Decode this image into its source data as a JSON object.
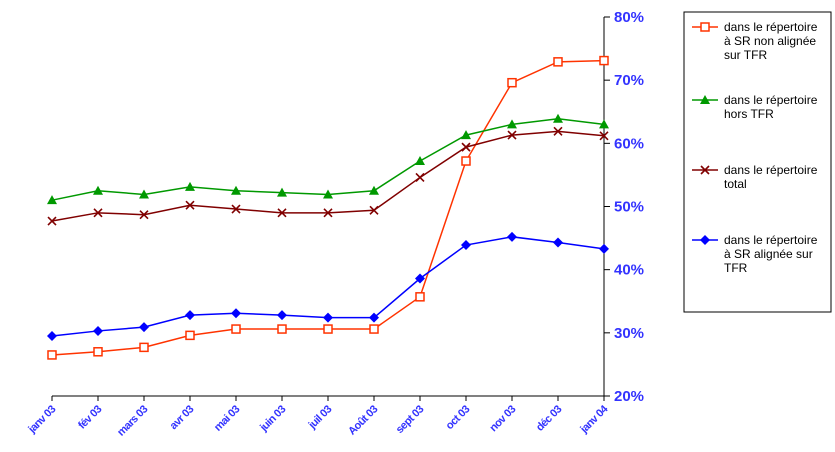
{
  "chart_data": {
    "type": "line",
    "title": "",
    "xlabel": "",
    "ylabel": "",
    "categories": [
      "janv 03",
      "fév 03",
      "mars 03",
      "avr 03",
      "mai 03",
      "juin 03",
      "juil 03",
      "Août 03",
      "sept 03",
      "oct 03",
      "nov 03",
      "déc 03",
      "janv 04"
    ],
    "y_ticks": [
      "20%",
      "30%",
      "40%",
      "50%",
      "60%",
      "70%",
      "80%"
    ],
    "ylim": [
      20,
      80
    ],
    "y_unit": "%",
    "y_axis_side": "right",
    "grid": false,
    "legend_position": "right",
    "axis_label_color": "#3333ff",
    "series": [
      {
        "name_lines": [
          "dans le répertoire",
          "à SR non alignée",
          "sur TFR"
        ],
        "color": "#ff3300",
        "marker": "square",
        "values": [
          26.5,
          27.0,
          27.7,
          29.6,
          30.6,
          30.6,
          30.6,
          30.6,
          35.7,
          57.2,
          69.6,
          72.9,
          73.1
        ]
      },
      {
        "name_lines": [
          "dans le répertoire",
          "hors TFR"
        ],
        "color": "#009900",
        "marker": "triangle",
        "values": [
          51.0,
          52.5,
          51.9,
          53.1,
          52.5,
          52.2,
          51.9,
          52.5,
          57.2,
          61.3,
          63.0,
          63.9,
          63.0
        ]
      },
      {
        "name_lines": [
          "dans le répertoire",
          "total"
        ],
        "color": "#800000",
        "marker": "x",
        "values": [
          47.7,
          49.0,
          48.7,
          50.2,
          49.6,
          49.0,
          49.0,
          49.4,
          54.6,
          59.4,
          61.3,
          61.9,
          61.2
        ]
      },
      {
        "name_lines": [
          "dans le répertoire",
          "à SR alignée sur",
          "TFR"
        ],
        "color": "#0000ff",
        "marker": "diamond",
        "values": [
          29.5,
          30.3,
          30.9,
          32.8,
          33.1,
          32.8,
          32.4,
          32.4,
          38.6,
          43.9,
          45.2,
          44.3,
          43.3
        ]
      }
    ]
  }
}
